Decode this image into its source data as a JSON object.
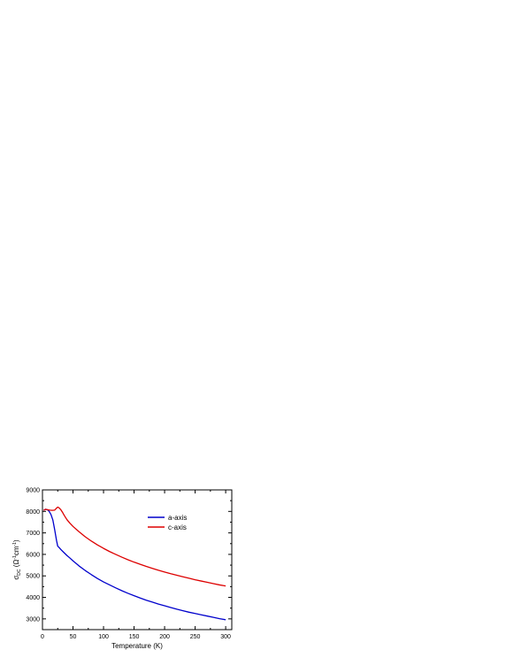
{
  "chart_data": {
    "type": "line",
    "xlabel": "Temperature (K)",
    "ylabel": {
      "symbol": "σ",
      "subscript": "DC",
      "units_open": " (Ω",
      "units_sup1": "-1",
      "units_mid": "cm",
      "units_sup2": "-1",
      "units_close": ")"
    },
    "xlim": [
      0,
      310
    ],
    "ylim": [
      2500,
      9000
    ],
    "xticks": [
      "0",
      "50",
      "100",
      "150",
      "200",
      "250",
      "300"
    ],
    "yticks": [
      "3000",
      "4000",
      "5000",
      "6000",
      "7000",
      "8000",
      "9000"
    ],
    "grid": false,
    "legend_position": "top-right",
    "series": [
      {
        "name": "a-axis",
        "color": "#0000cc",
        "x": [
          2,
          5,
          8,
          11,
          14,
          17,
          20,
          23,
          25,
          27,
          30,
          35,
          40,
          45,
          50,
          60,
          70,
          80,
          90,
          100,
          110,
          120,
          130,
          140,
          150,
          160,
          170,
          180,
          190,
          200,
          210,
          220,
          230,
          240,
          250,
          260,
          270,
          280,
          290,
          300
        ],
        "y": [
          8050,
          8100,
          8080,
          8000,
          7850,
          7600,
          7150,
          6650,
          6380,
          6330,
          6230,
          6090,
          5950,
          5830,
          5700,
          5460,
          5250,
          5060,
          4880,
          4720,
          4580,
          4440,
          4310,
          4190,
          4080,
          3970,
          3870,
          3780,
          3690,
          3610,
          3530,
          3450,
          3380,
          3310,
          3250,
          3190,
          3130,
          3070,
          3010,
          2960
        ]
      },
      {
        "name": "c-axis",
        "color": "#dd0000",
        "x": [
          2,
          5,
          8,
          12,
          16,
          20,
          23,
          25,
          27,
          30,
          33,
          36,
          40,
          45,
          50,
          60,
          70,
          80,
          90,
          100,
          110,
          120,
          130,
          140,
          150,
          160,
          170,
          180,
          190,
          200,
          210,
          220,
          230,
          240,
          250,
          260,
          270,
          280,
          290,
          300
        ],
        "y": [
          8050,
          8100,
          8080,
          8060,
          8050,
          8060,
          8150,
          8200,
          8170,
          8080,
          7950,
          7800,
          7620,
          7450,
          7300,
          7050,
          6820,
          6620,
          6440,
          6280,
          6130,
          6000,
          5870,
          5750,
          5640,
          5540,
          5440,
          5350,
          5260,
          5180,
          5100,
          5030,
          4960,
          4890,
          4820,
          4760,
          4700,
          4640,
          4580,
          4530
        ]
      }
    ]
  }
}
